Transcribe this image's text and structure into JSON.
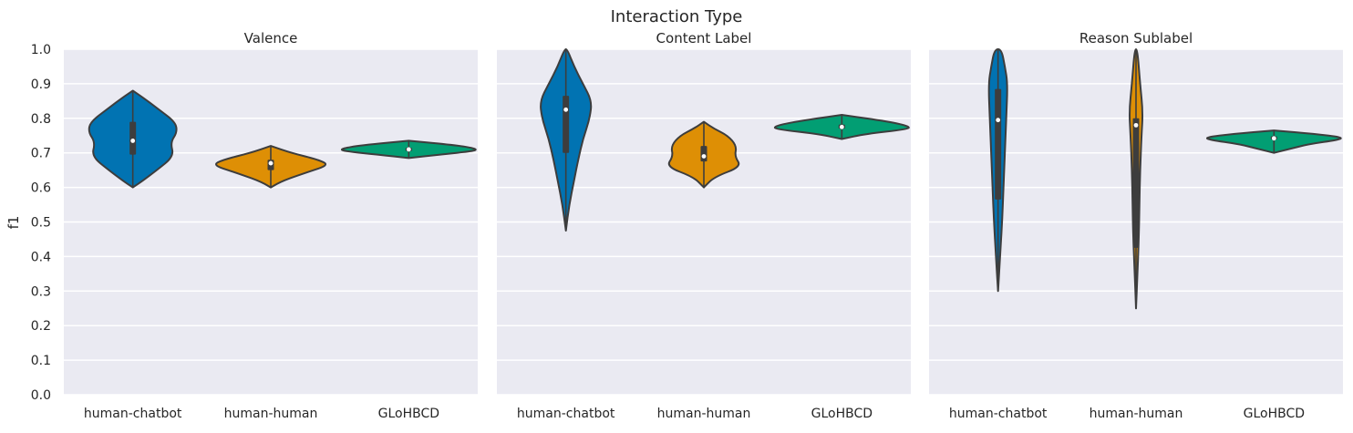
{
  "chart_data": {
    "type": "violin",
    "title": "Interaction Type",
    "ylabel": "f1",
    "ylim": [
      0,
      1.0
    ],
    "yticks": [
      "0.0",
      "0.1",
      "0.2",
      "0.3",
      "0.4",
      "0.5",
      "0.6",
      "0.7",
      "0.8",
      "0.9",
      "1.0"
    ],
    "grid": true,
    "categories": [
      "human-chatbot",
      "human-human",
      "GLoHBCD"
    ],
    "colors": {
      "human-chatbot": "#0173b2",
      "human-human": "#de8f05",
      "GLoHBCD": "#029e73"
    },
    "panels": [
      {
        "title": "Valence",
        "violins": [
          {
            "category": "human-chatbot",
            "min": 0.6,
            "max": 0.88,
            "median": 0.735,
            "q1": 0.695,
            "q3": 0.79,
            "width_profile": [
              [
                0.6,
                0.0
              ],
              [
                0.62,
                0.15
              ],
              [
                0.65,
                0.35
              ],
              [
                0.69,
                0.6
              ],
              [
                0.73,
                0.55
              ],
              [
                0.76,
                0.65
              ],
              [
                0.79,
                0.62
              ],
              [
                0.83,
                0.35
              ],
              [
                0.86,
                0.15
              ],
              [
                0.88,
                0.0
              ]
            ]
          },
          {
            "category": "human-human",
            "min": 0.6,
            "max": 0.72,
            "median": 0.67,
            "q1": 0.65,
            "q3": 0.68,
            "width_profile": [
              [
                0.6,
                0.0
              ],
              [
                0.62,
                0.18
              ],
              [
                0.645,
                0.55
              ],
              [
                0.665,
                0.85
              ],
              [
                0.68,
                0.7
              ],
              [
                0.7,
                0.3
              ],
              [
                0.72,
                0.0
              ]
            ]
          },
          {
            "category": "GLoHBCD",
            "min": 0.685,
            "max": 0.735,
            "median": 0.71,
            "q1": 0.705,
            "q3": 0.715,
            "width_profile": [
              [
                0.685,
                0.0
              ],
              [
                0.695,
                0.45
              ],
              [
                0.705,
                0.95
              ],
              [
                0.712,
                1.0
              ],
              [
                0.722,
                0.7
              ],
              [
                0.735,
                0.0
              ]
            ]
          }
        ]
      },
      {
        "title": "Content Label",
        "violins": [
          {
            "category": "human-chatbot",
            "min": 0.475,
            "max": 1.0,
            "median": 0.825,
            "q1": 0.7,
            "q3": 0.865,
            "width_profile": [
              [
                0.475,
                0.0
              ],
              [
                0.55,
                0.05
              ],
              [
                0.62,
                0.12
              ],
              [
                0.68,
                0.18
              ],
              [
                0.74,
                0.25
              ],
              [
                0.8,
                0.35
              ],
              [
                0.85,
                0.38
              ],
              [
                0.9,
                0.25
              ],
              [
                0.95,
                0.12
              ],
              [
                1.0,
                0.02
              ]
            ]
          },
          {
            "category": "human-human",
            "min": 0.6,
            "max": 0.79,
            "median": 0.69,
            "q1": 0.675,
            "q3": 0.72,
            "width_profile": [
              [
                0.6,
                0.0
              ],
              [
                0.63,
                0.15
              ],
              [
                0.66,
                0.55
              ],
              [
                0.69,
                0.45
              ],
              [
                0.72,
                0.48
              ],
              [
                0.75,
                0.35
              ],
              [
                0.77,
                0.15
              ],
              [
                0.79,
                0.0
              ]
            ]
          },
          {
            "category": "GLoHBCD",
            "min": 0.74,
            "max": 0.81,
            "median": 0.775,
            "q1": 0.77,
            "q3": 0.782,
            "width_profile": [
              [
                0.74,
                0.0
              ],
              [
                0.755,
                0.35
              ],
              [
                0.768,
                0.95
              ],
              [
                0.776,
                1.0
              ],
              [
                0.79,
                0.7
              ],
              [
                0.81,
                0.0
              ]
            ]
          }
        ]
      },
      {
        "title": "Reason Sublabel",
        "violins": [
          {
            "category": "human-chatbot",
            "min": 0.3,
            "max": 1.0,
            "median": 0.795,
            "q1": 0.565,
            "q3": 0.885,
            "width_profile": [
              [
                0.3,
                0.0
              ],
              [
                0.4,
                0.03
              ],
              [
                0.5,
                0.06
              ],
              [
                0.6,
                0.08
              ],
              [
                0.7,
                0.1
              ],
              [
                0.8,
                0.12
              ],
              [
                0.9,
                0.14
              ],
              [
                0.95,
                0.1
              ],
              [
                1.0,
                0.05
              ]
            ]
          },
          {
            "category": "human-human",
            "min": 0.25,
            "max": 1.0,
            "median": 0.78,
            "q1": 0.425,
            "q3": 0.8,
            "width_profile": [
              [
                0.25,
                0.0
              ],
              [
                0.35,
                0.02
              ],
              [
                0.45,
                0.04
              ],
              [
                0.55,
                0.05
              ],
              [
                0.65,
                0.06
              ],
              [
                0.75,
                0.08
              ],
              [
                0.82,
                0.1
              ],
              [
                0.9,
                0.06
              ],
              [
                1.0,
                0.02
              ]
            ]
          },
          {
            "category": "GLoHBCD",
            "min": 0.7,
            "max": 0.765,
            "median": 0.742,
            "q1": 0.738,
            "q3": 0.748,
            "width_profile": [
              [
                0.7,
                0.0
              ],
              [
                0.71,
                0.2
              ],
              [
                0.725,
                0.5
              ],
              [
                0.738,
                0.95
              ],
              [
                0.745,
                1.0
              ],
              [
                0.755,
                0.6
              ],
              [
                0.765,
                0.0
              ]
            ]
          }
        ]
      }
    ]
  }
}
